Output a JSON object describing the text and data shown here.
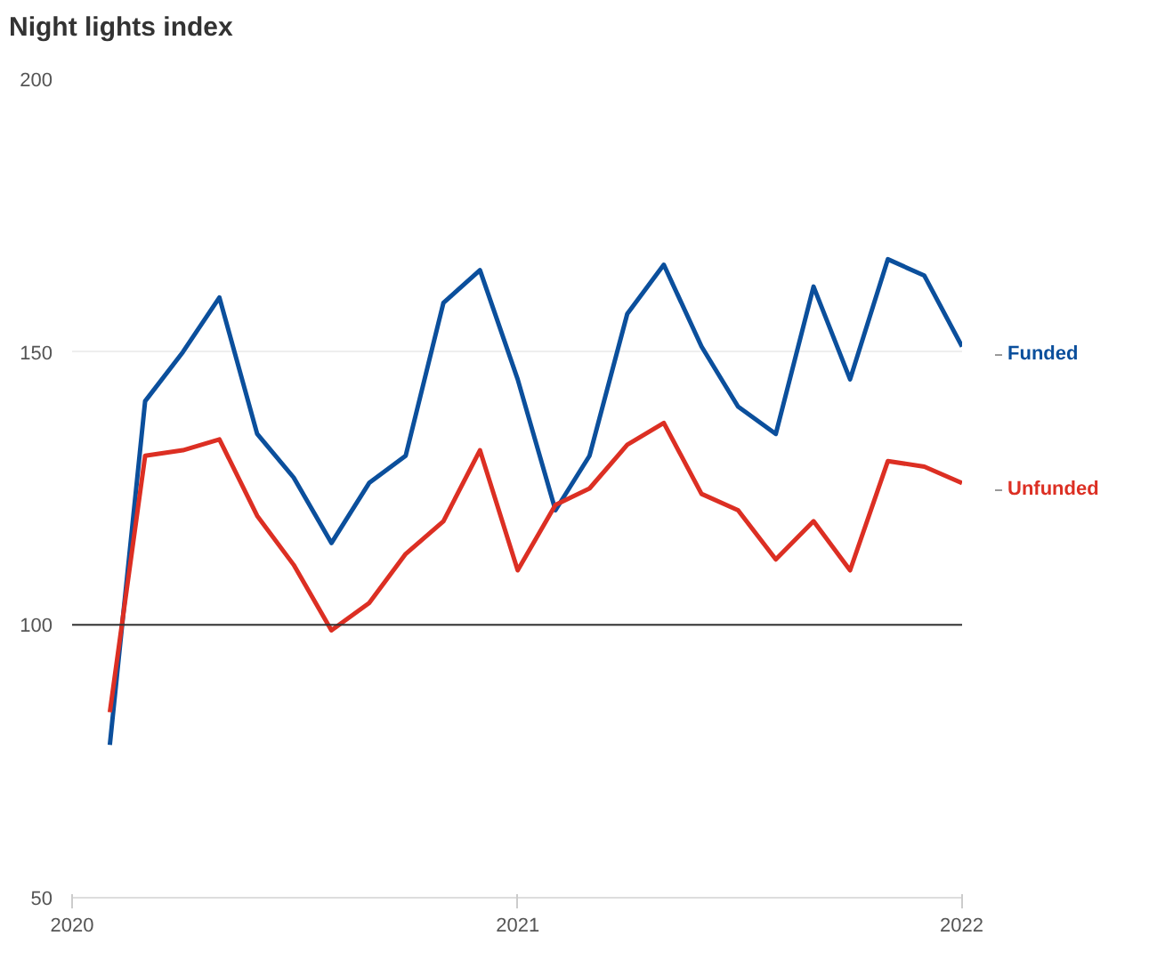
{
  "chart_data": {
    "type": "line",
    "title": "Night lights index",
    "x": [
      "2020-02",
      "2020-03",
      "2020-04",
      "2020-05",
      "2020-06",
      "2020-07",
      "2020-08",
      "2020-09",
      "2020-10",
      "2020-11",
      "2020-12",
      "2021-01",
      "2021-02",
      "2021-03",
      "2021-04",
      "2021-05",
      "2021-06",
      "2021-07",
      "2021-08",
      "2021-09",
      "2021-10",
      "2021-11",
      "2021-12",
      "2022-01"
    ],
    "series": [
      {
        "name": "Funded",
        "color": "#0b4f9c",
        "values": [
          78,
          141,
          150,
          160,
          135,
          127,
          115,
          126,
          131,
          159,
          165,
          145,
          121,
          131,
          157,
          166,
          151,
          140,
          135,
          162,
          145,
          167,
          164,
          151
        ]
      },
      {
        "name": "Unfunded",
        "color": "#dc2f23",
        "values": [
          84,
          131,
          132,
          134,
          120,
          111,
          99,
          104,
          113,
          119,
          132,
          110,
          122,
          125,
          133,
          137,
          124,
          121,
          112,
          119,
          110,
          130,
          129,
          126
        ]
      }
    ],
    "xlim": [
      "2020",
      "2022"
    ],
    "xticks": [
      "2020",
      "2021",
      "2022"
    ],
    "ylim": [
      50,
      200
    ],
    "yticks": [
      50,
      100,
      150,
      200
    ],
    "grid": "y",
    "ref_lines": [
      {
        "axis": "y",
        "value": 100,
        "color": "#333333"
      }
    ]
  }
}
